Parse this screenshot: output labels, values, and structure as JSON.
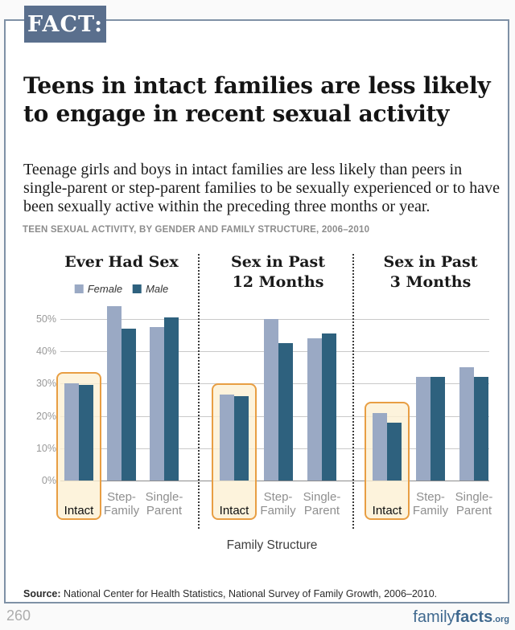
{
  "badge": "FACT:",
  "title": "Teens in intact families are less likely to engage in recent sexual activity",
  "description": "Teenage girls and boys in intact families are less likely than peers in single-parent or step-parent families to be sexually experienced or to have been sexually active within the preceding three months or year.",
  "chart_data": {
    "type": "bar",
    "title": "TEEN SEXUAL ACTIVITY, BY GENDER AND FAMILY STRUCTURE, 2006–2010",
    "xlabel": "Family Structure",
    "ylim": [
      0,
      55
    ],
    "ytick_labels": [
      "0%",
      "10%",
      "20%",
      "30%",
      "40%",
      "50%"
    ],
    "grid": true,
    "legend_position": "under first group title",
    "legend": [
      {
        "name": "Female",
        "color": "#9aa9c4"
      },
      {
        "name": "Male",
        "color": "#2e617e"
      }
    ],
    "categories": [
      "Intact",
      "Step-Family",
      "Single-Parent"
    ],
    "category_label_lines": [
      [
        "Intact"
      ],
      [
        "Step-",
        "Family"
      ],
      [
        "Single-",
        "Parent"
      ]
    ],
    "highlighted_category": "Intact",
    "groups": [
      {
        "title_lines": [
          "Ever Had Sex"
        ],
        "series": [
          {
            "name": "Female",
            "values": [
              30,
              54,
              47.5
            ]
          },
          {
            "name": "Male",
            "values": [
              29.5,
              47,
              50.5
            ]
          }
        ]
      },
      {
        "title_lines": [
          "Sex in Past",
          "12 Months"
        ],
        "series": [
          {
            "name": "Female",
            "values": [
              26.5,
              50,
              44
            ]
          },
          {
            "name": "Male",
            "values": [
              26,
              42.5,
              45.5
            ]
          }
        ]
      },
      {
        "title_lines": [
          "Sex in Past",
          "3 Months"
        ],
        "series": [
          {
            "name": "Female",
            "values": [
              21,
              32,
              35
            ]
          },
          {
            "name": "Male",
            "values": [
              18,
              32,
              32
            ]
          }
        ]
      }
    ]
  },
  "source": {
    "label": "Source:",
    "text": " National Center for Health Statistics, National Survey of Family Growth, 2006–2010."
  },
  "footer": {
    "page_number": "260",
    "logo": {
      "part1": "family",
      "part2": "facts",
      "part3": ".org"
    }
  },
  "colors": {
    "badge_bg": "#5a6f8d",
    "box_border": "#7f91a6",
    "female_bar": "#9aa9c4",
    "male_bar": "#2e617e",
    "highlight_border": "#e89e43",
    "highlight_fill": "#fdf0d3",
    "logo_blue": "#40698f"
  }
}
